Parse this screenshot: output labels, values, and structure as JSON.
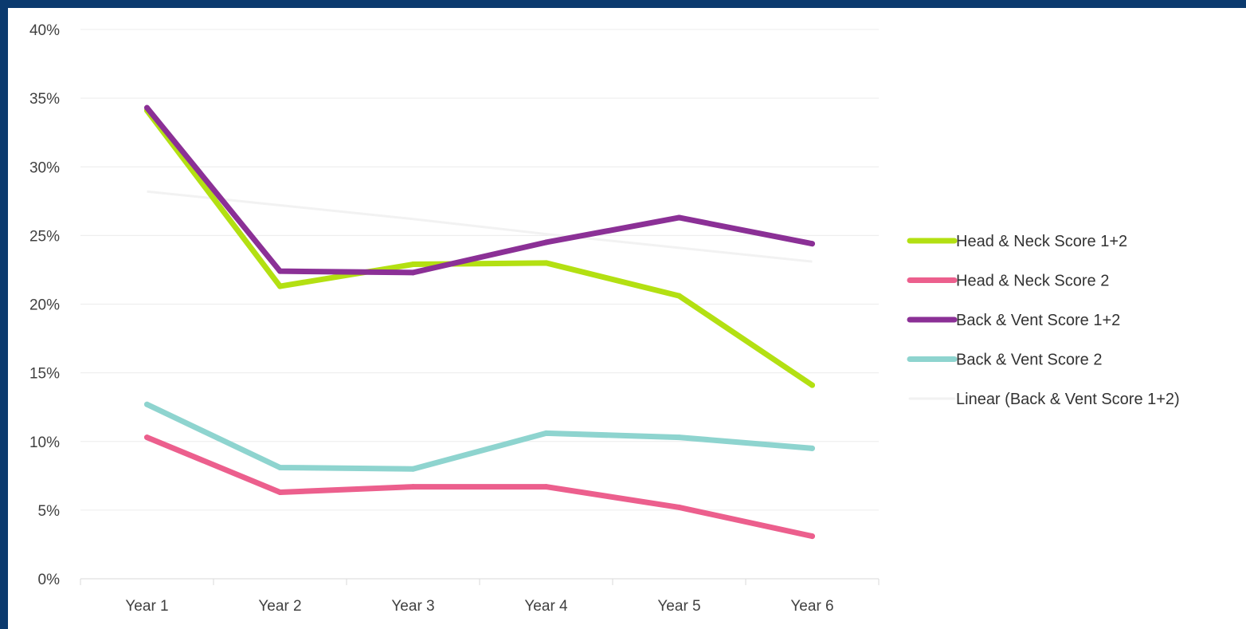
{
  "chart_data": {
    "type": "line",
    "categories": [
      "Year 1",
      "Year 2",
      "Year 3",
      "Year 4",
      "Year 5",
      "Year 6"
    ],
    "ylim": [
      0,
      40
    ],
    "yticks": [
      "0%",
      "5%",
      "10%",
      "15%",
      "20%",
      "25%",
      "30%",
      "35%",
      "40%"
    ],
    "ytick_values": [
      0,
      5,
      10,
      15,
      20,
      25,
      30,
      35,
      40
    ],
    "grid": true,
    "legend_position": "right",
    "series": [
      {
        "name": "Head & Neck Score 1+2",
        "color": "#b3e012",
        "values": [
          34.1,
          21.3,
          22.9,
          23.0,
          20.6,
          14.1
        ]
      },
      {
        "name": "Head & Neck Score 2",
        "color": "#ec5f8d",
        "values": [
          10.3,
          6.3,
          6.7,
          6.7,
          5.2,
          3.1
        ]
      },
      {
        "name": "Back & Vent Score 1+2",
        "color": "#8b3096",
        "values": [
          34.3,
          22.4,
          22.3,
          24.5,
          26.3,
          24.4
        ]
      },
      {
        "name": "Back & Vent Score 2",
        "color": "#8ed4cf",
        "values": [
          12.7,
          8.1,
          8.0,
          10.6,
          10.3,
          9.5
        ]
      }
    ],
    "trendline": {
      "name": "Linear (Back & Vent Score 1+2)",
      "color": "#f2f2f2",
      "values": [
        28.2,
        27.2,
        26.2,
        25.1,
        24.1,
        23.1
      ]
    }
  }
}
